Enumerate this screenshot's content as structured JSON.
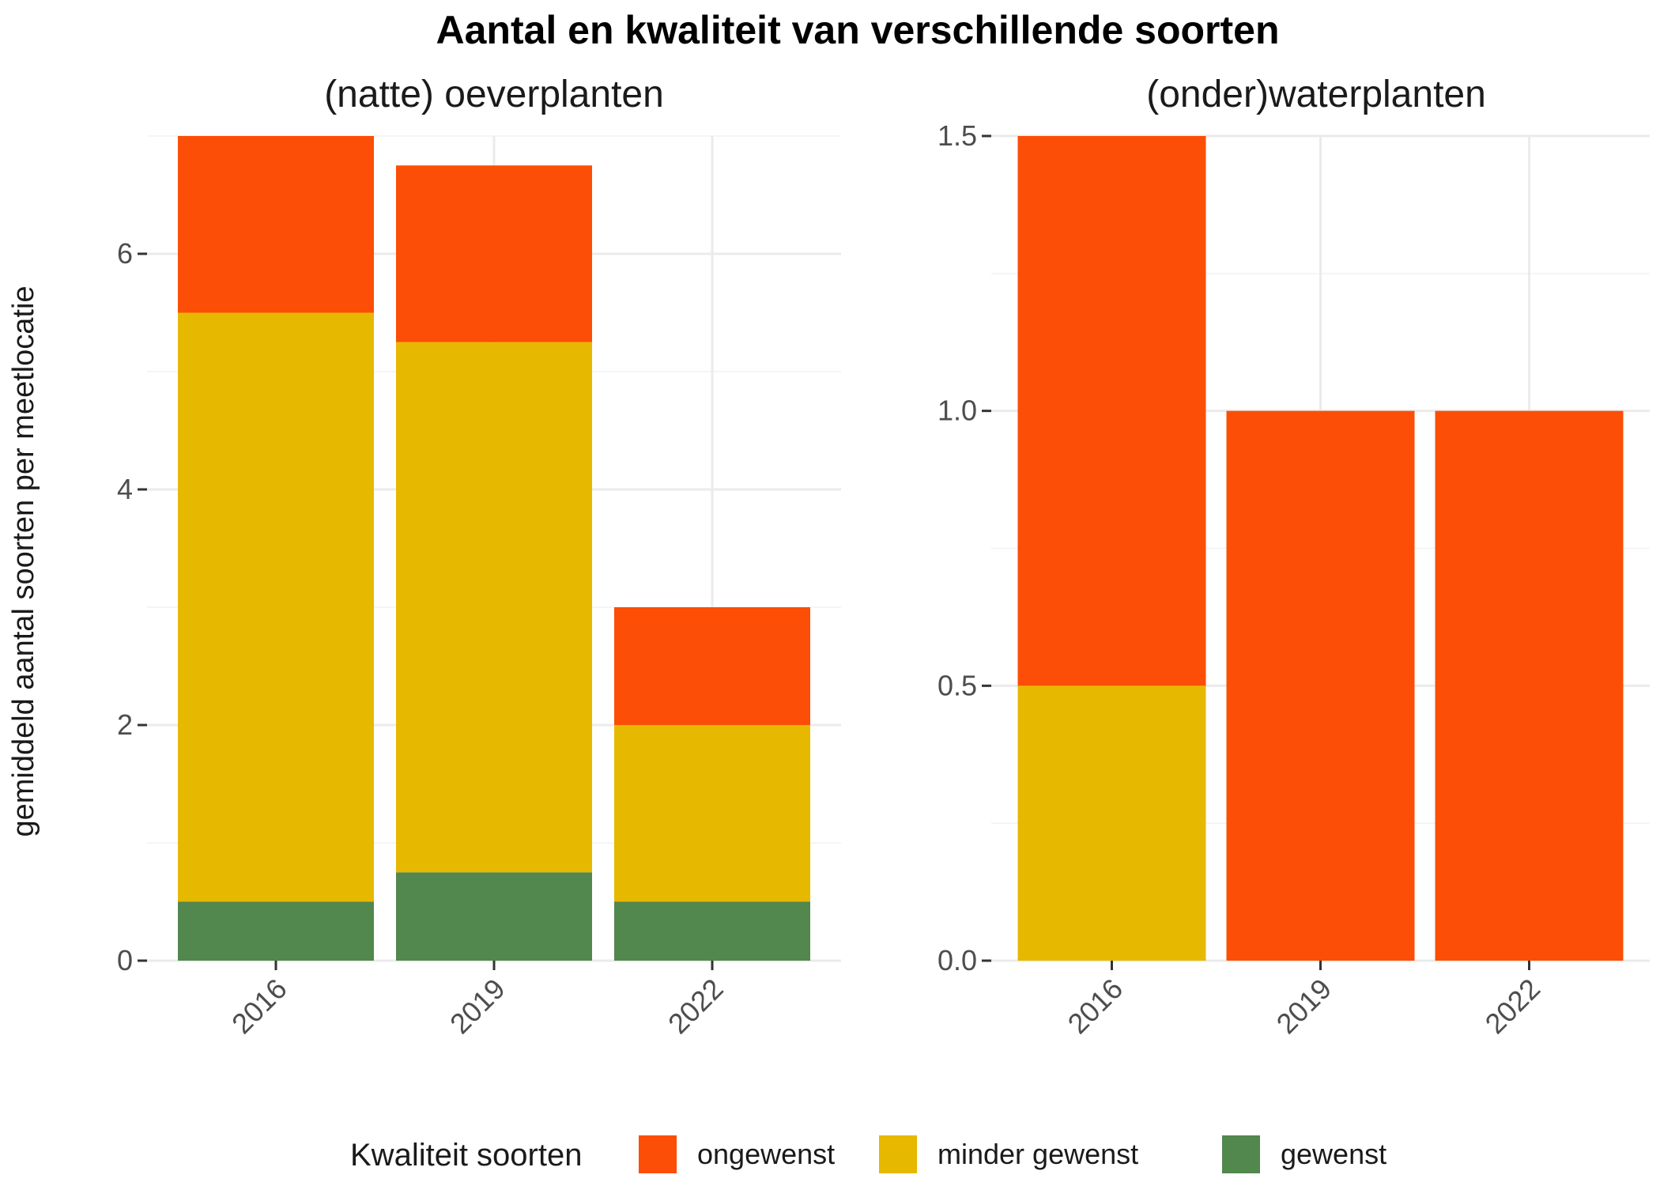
{
  "chart_data": {
    "type": "bar",
    "stacked": true,
    "title": "Aantal en kwaliteit van verschillende soorten",
    "ylabel": "gemiddeld aantal soorten per meetlocatie",
    "grid": true,
    "legend": {
      "title": "Kwaliteit soorten",
      "position": "bottom",
      "entries": [
        {
          "name": "ongewenst",
          "color": "#FC4E07"
        },
        {
          "name": "minder gewenst",
          "color": "#E7B800"
        },
        {
          "name": "gewenst",
          "color": "#52874E"
        }
      ]
    },
    "panels": [
      {
        "title": "(natte) oeverplanten",
        "categories": [
          "2016",
          "2019",
          "2022"
        ],
        "ylim": [
          0,
          7
        ],
        "yticks": [
          0,
          2,
          4,
          6
        ],
        "ytick_labels": [
          "0",
          "2",
          "4",
          "6"
        ],
        "series": [
          {
            "name": "gewenst",
            "values": [
              0.5,
              0.75,
              0.5
            ]
          },
          {
            "name": "minder gewenst",
            "values": [
              5.0,
              4.5,
              1.5
            ]
          },
          {
            "name": "ongewenst",
            "values": [
              1.5,
              1.5,
              1.0
            ]
          }
        ]
      },
      {
        "title": "(onder)waterplanten",
        "categories": [
          "2016",
          "2019",
          "2022"
        ],
        "ylim": [
          0,
          1.5
        ],
        "yticks": [
          0,
          0.5,
          1.0,
          1.5
        ],
        "ytick_labels": [
          "0.0",
          "0.5",
          "1.0",
          "1.5"
        ],
        "series": [
          {
            "name": "gewenst",
            "values": [
              0,
              0,
              0
            ]
          },
          {
            "name": "minder gewenst",
            "values": [
              0.5,
              0,
              0
            ]
          },
          {
            "name": "ongewenst",
            "values": [
              1.0,
              1.0,
              1.0
            ]
          }
        ]
      }
    ]
  }
}
